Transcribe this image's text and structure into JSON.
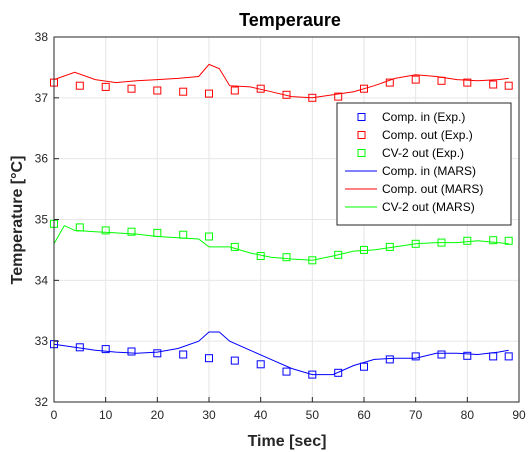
{
  "chart_data": {
    "type": "line",
    "title": "Temperaure",
    "xlabel": "Time [sec]",
    "ylabel": "Temperature [°C]",
    "xlim": [
      0,
      90
    ],
    "ylim": [
      32,
      38
    ],
    "xticks": [
      "0",
      "10",
      "20",
      "30",
      "40",
      "50",
      "60",
      "70",
      "80",
      "90"
    ],
    "yticks": [
      "32",
      "33",
      "34",
      "35",
      "36",
      "37",
      "38"
    ],
    "grid": true,
    "legend_position": "upper-right",
    "series": [
      {
        "name": "Comp. in (Exp.)",
        "kind": "markers",
        "marker": "square",
        "color": "#0000ff",
        "x": [
          0,
          5,
          10,
          15,
          20,
          25,
          30,
          35,
          40,
          45,
          50,
          55,
          60,
          65,
          70,
          75,
          80,
          85,
          88
        ],
        "y": [
          32.95,
          32.9,
          32.87,
          32.83,
          32.8,
          32.78,
          32.72,
          32.68,
          32.62,
          32.5,
          32.45,
          32.48,
          32.58,
          32.7,
          32.75,
          32.78,
          32.76,
          32.75,
          32.75
        ]
      },
      {
        "name": "Comp. out (Exp.)",
        "kind": "markers",
        "marker": "square",
        "color": "#ff0000",
        "x": [
          0,
          5,
          10,
          15,
          20,
          25,
          30,
          35,
          40,
          45,
          50,
          55,
          60,
          65,
          70,
          75,
          80,
          85,
          88
        ],
        "y": [
          37.25,
          37.2,
          37.18,
          37.15,
          37.12,
          37.1,
          37.07,
          37.12,
          37.15,
          37.05,
          37.0,
          37.02,
          37.15,
          37.25,
          37.3,
          37.28,
          37.25,
          37.22,
          37.2
        ]
      },
      {
        "name": "CV-2 out (Exp.)",
        "kind": "markers",
        "marker": "square",
        "color": "#00ff00",
        "x": [
          0,
          5,
          10,
          15,
          20,
          25,
          30,
          35,
          40,
          45,
          50,
          55,
          60,
          65,
          70,
          75,
          80,
          85,
          88
        ],
        "y": [
          34.93,
          34.87,
          34.82,
          34.8,
          34.78,
          34.75,
          34.72,
          34.55,
          34.4,
          34.38,
          34.33,
          34.42,
          34.5,
          34.55,
          34.6,
          34.62,
          34.65,
          34.66,
          34.65
        ]
      },
      {
        "name": "Comp. in (MARS)",
        "kind": "line",
        "color": "#0000ff",
        "x": [
          0,
          4,
          8,
          12,
          16,
          20,
          24,
          28,
          30,
          32,
          34,
          38,
          42,
          46,
          50,
          54,
          58,
          62,
          66,
          70,
          74,
          78,
          82,
          86,
          88
        ],
        "y": [
          32.95,
          32.9,
          32.85,
          32.82,
          32.8,
          32.82,
          32.88,
          33.0,
          33.15,
          33.15,
          33.0,
          32.85,
          32.7,
          32.55,
          32.45,
          32.45,
          32.6,
          32.7,
          32.72,
          32.72,
          32.8,
          32.8,
          32.78,
          32.82,
          32.85
        ]
      },
      {
        "name": "Comp. out (MARS)",
        "kind": "line",
        "color": "#ff0000",
        "x": [
          0,
          4,
          8,
          12,
          16,
          20,
          24,
          28,
          30,
          32,
          34,
          38,
          42,
          46,
          50,
          54,
          58,
          62,
          66,
          70,
          74,
          78,
          82,
          86,
          88
        ],
        "y": [
          37.3,
          37.42,
          37.3,
          37.25,
          37.28,
          37.3,
          37.32,
          37.35,
          37.55,
          37.48,
          37.2,
          37.18,
          37.1,
          37.02,
          37.0,
          37.05,
          37.1,
          37.2,
          37.32,
          37.38,
          37.35,
          37.3,
          37.28,
          37.3,
          37.32
        ]
      },
      {
        "name": "CV-2 out (MARS)",
        "kind": "line",
        "color": "#00ff00",
        "x": [
          0,
          2,
          4,
          8,
          12,
          16,
          20,
          24,
          28,
          30,
          34,
          38,
          42,
          46,
          50,
          54,
          58,
          62,
          66,
          70,
          74,
          78,
          82,
          86,
          88
        ],
        "y": [
          34.6,
          34.9,
          34.82,
          34.8,
          34.78,
          34.76,
          34.72,
          34.7,
          34.68,
          34.55,
          34.55,
          34.45,
          34.38,
          34.35,
          34.33,
          34.4,
          34.48,
          34.5,
          34.55,
          34.6,
          34.62,
          34.62,
          34.65,
          34.62,
          34.6
        ]
      }
    ]
  }
}
